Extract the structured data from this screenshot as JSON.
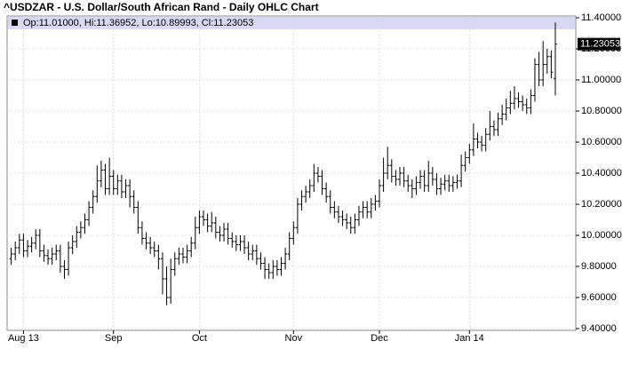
{
  "chart_data": {
    "type": "ohlc",
    "title": "^USDZAR - U.S. Dollar/South African Rand - Daily OHLC Chart",
    "info": "Op:11.01000, Hi:11.36952, Lo:10.89993, Cl:11.23053",
    "last_label": "11.23053",
    "color": "#000000",
    "grid": true,
    "open": [
      9.85,
      9.88,
      9.92,
      9.97,
      9.9,
      9.93,
      9.95,
      10.0,
      9.9,
      9.87,
      9.85,
      9.88,
      9.9,
      9.8,
      9.78,
      9.92,
      9.96,
      10.02,
      10.05,
      10.1,
      10.18,
      10.25,
      10.35,
      10.42,
      10.3,
      10.38,
      10.3,
      10.35,
      10.28,
      10.32,
      10.25,
      10.18,
      10.05,
      9.98,
      9.95,
      9.92,
      9.9,
      9.85,
      9.72,
      9.6,
      9.78,
      9.85,
      9.88,
      9.86,
      9.9,
      9.95,
      10.05,
      10.12,
      10.1,
      10.06,
      10.08,
      10.02,
      10.0,
      10.04,
      9.98,
      9.96,
      9.94,
      9.96,
      9.92,
      9.88,
      9.9,
      9.85,
      9.82,
      9.78,
      9.76,
      9.8,
      9.78,
      9.82,
      9.88,
      9.98,
      10.05,
      10.2,
      10.25,
      10.28,
      10.32,
      10.4,
      10.38,
      10.3,
      10.25,
      10.18,
      10.15,
      10.12,
      10.1,
      10.08,
      10.05,
      10.1,
      10.15,
      10.18,
      10.15,
      10.2,
      10.22,
      10.32,
      10.4,
      10.45,
      10.38,
      10.36,
      10.4,
      10.35,
      10.32,
      10.3,
      10.34,
      10.38,
      10.32,
      10.4,
      10.36,
      10.3,
      10.33,
      10.35,
      10.32,
      10.34,
      10.35,
      10.45,
      10.5,
      10.55,
      10.62,
      10.6,
      10.58,
      10.65,
      10.7,
      10.68,
      10.75,
      10.78,
      10.82,
      10.85,
      10.88,
      10.86,
      10.84,
      10.82,
      10.9,
      11.1,
      11.0,
      11.1,
      11.15,
      11.01
    ],
    "high": [
      9.92,
      9.96,
      10.01,
      10.01,
      9.97,
      9.99,
      10.04,
      10.04,
      9.94,
      9.91,
      9.92,
      9.94,
      9.94,
      9.84,
      9.96,
      10.0,
      10.06,
      10.09,
      10.14,
      10.22,
      10.29,
      10.45,
      10.48,
      10.46,
      10.5,
      10.42,
      10.39,
      10.39,
      10.36,
      10.36,
      10.29,
      10.22,
      10.09,
      10.02,
      9.99,
      9.96,
      9.94,
      9.89,
      9.8,
      9.85,
      9.89,
      9.92,
      9.92,
      9.94,
      9.99,
      10.12,
      10.16,
      10.16,
      10.14,
      10.15,
      10.12,
      10.06,
      10.08,
      10.08,
      10.02,
      10.0,
      10.0,
      10.0,
      9.96,
      9.94,
      9.94,
      9.89,
      9.86,
      9.82,
      9.84,
      9.84,
      9.86,
      9.92,
      10.02,
      10.09,
      10.24,
      10.29,
      10.32,
      10.36,
      10.46,
      10.44,
      10.42,
      10.34,
      10.29,
      10.22,
      10.19,
      10.16,
      10.14,
      10.12,
      10.14,
      10.19,
      10.22,
      10.22,
      10.24,
      10.26,
      10.36,
      10.5,
      10.57,
      10.49,
      10.42,
      10.44,
      10.44,
      10.39,
      10.36,
      10.38,
      10.42,
      10.42,
      10.48,
      10.44,
      10.4,
      10.37,
      10.39,
      10.39,
      10.38,
      10.39,
      10.52,
      10.54,
      10.59,
      10.72,
      10.66,
      10.64,
      10.69,
      10.8,
      10.74,
      10.79,
      10.84,
      10.88,
      10.93,
      10.96,
      10.92,
      10.9,
      10.88,
      10.94,
      11.14,
      11.18,
      11.25,
      11.2,
      11.19,
      11.36952
    ],
    "low": [
      9.81,
      9.84,
      9.88,
      9.86,
      9.86,
      9.89,
      9.91,
      9.86,
      9.83,
      9.81,
      9.81,
      9.84,
      9.76,
      9.72,
      9.74,
      9.88,
      9.92,
      9.98,
      10.01,
      10.06,
      10.14,
      10.21,
      10.31,
      10.26,
      10.26,
      10.26,
      10.26,
      10.24,
      10.24,
      10.18,
      10.14,
      10.01,
      9.94,
      9.91,
      9.88,
      9.86,
      9.78,
      9.62,
      9.55,
      9.56,
      9.74,
      9.81,
      9.82,
      9.82,
      9.86,
      9.91,
      10.01,
      10.06,
      10.02,
      10.02,
      9.98,
      9.96,
      9.96,
      9.94,
      9.92,
      9.9,
      9.9,
      9.88,
      9.84,
      9.84,
      9.81,
      9.78,
      9.72,
      9.72,
      9.72,
      9.74,
      9.74,
      9.78,
      9.84,
      9.94,
      10.01,
      10.16,
      10.21,
      10.24,
      10.28,
      10.34,
      10.26,
      10.21,
      10.14,
      10.11,
      10.08,
      10.06,
      10.04,
      10.01,
      10.01,
      10.06,
      10.11,
      10.11,
      10.11,
      10.16,
      10.18,
      10.28,
      10.36,
      10.34,
      10.32,
      10.32,
      10.31,
      10.28,
      10.24,
      10.26,
      10.3,
      10.28,
      10.28,
      10.32,
      10.26,
      10.26,
      10.29,
      10.28,
      10.28,
      10.3,
      10.31,
      10.41,
      10.46,
      10.51,
      10.56,
      10.54,
      10.54,
      10.61,
      10.64,
      10.64,
      10.71,
      10.74,
      10.78,
      10.81,
      10.82,
      10.8,
      10.78,
      10.78,
      10.86,
      10.96,
      10.96,
      11.04,
      11.01,
      10.89993
    ],
    "close": [
      9.88,
      9.92,
      9.97,
      9.9,
      9.93,
      9.95,
      10.0,
      9.9,
      9.87,
      9.85,
      9.88,
      9.9,
      9.8,
      9.78,
      9.92,
      9.96,
      10.02,
      10.05,
      10.1,
      10.18,
      10.25,
      10.35,
      10.42,
      10.3,
      10.38,
      10.3,
      10.35,
      10.28,
      10.32,
      10.25,
      10.18,
      10.05,
      9.98,
      9.95,
      9.92,
      9.9,
      9.85,
      9.72,
      9.6,
      9.78,
      9.85,
      9.88,
      9.86,
      9.9,
      9.95,
      10.05,
      10.12,
      10.1,
      10.06,
      10.08,
      10.02,
      10.0,
      10.04,
      9.98,
      9.96,
      9.94,
      9.96,
      9.92,
      9.88,
      9.9,
      9.85,
      9.82,
      9.78,
      9.76,
      9.8,
      9.78,
      9.82,
      9.88,
      9.98,
      10.05,
      10.2,
      10.25,
      10.28,
      10.32,
      10.4,
      10.38,
      10.3,
      10.25,
      10.18,
      10.15,
      10.12,
      10.1,
      10.08,
      10.05,
      10.1,
      10.15,
      10.18,
      10.15,
      10.2,
      10.22,
      10.32,
      10.4,
      10.45,
      10.38,
      10.36,
      10.4,
      10.35,
      10.32,
      10.3,
      10.34,
      10.38,
      10.32,
      10.4,
      10.36,
      10.3,
      10.33,
      10.35,
      10.32,
      10.34,
      10.35,
      10.45,
      10.5,
      10.55,
      10.62,
      10.6,
      10.58,
      10.65,
      10.7,
      10.68,
      10.75,
      10.78,
      10.82,
      10.85,
      10.88,
      10.86,
      10.84,
      10.82,
      10.9,
      11.1,
      11.0,
      11.1,
      11.15,
      11.05,
      11.23053
    ],
    "xlim": [
      -1,
      138
    ],
    "xticks": [
      {
        "value": 3,
        "label": "Aug 13"
      },
      {
        "value": 25,
        "label": "Sep"
      },
      {
        "value": 46,
        "label": "Oct"
      },
      {
        "value": 69,
        "label": "Nov"
      },
      {
        "value": 90,
        "label": "Dec"
      },
      {
        "value": 112,
        "label": "Jan 14"
      }
    ],
    "ylim": [
      9.4,
      11.4
    ],
    "yticks": [
      {
        "value": 9.4,
        "label": "9.40000"
      },
      {
        "value": 9.6,
        "label": "9.60000"
      },
      {
        "value": 9.8,
        "label": "9.80000"
      },
      {
        "value": 10.0,
        "label": "10.00000"
      },
      {
        "value": 10.2,
        "label": "10.20000"
      },
      {
        "value": 10.4,
        "label": "10.40000"
      },
      {
        "value": 10.6,
        "label": "10.60000"
      },
      {
        "value": 10.8,
        "label": "10.80000"
      },
      {
        "value": 11.0,
        "label": "11.00000"
      },
      {
        "value": 11.2,
        "label": "11.20000"
      },
      {
        "value": 11.4,
        "label": "11.40000"
      }
    ]
  }
}
